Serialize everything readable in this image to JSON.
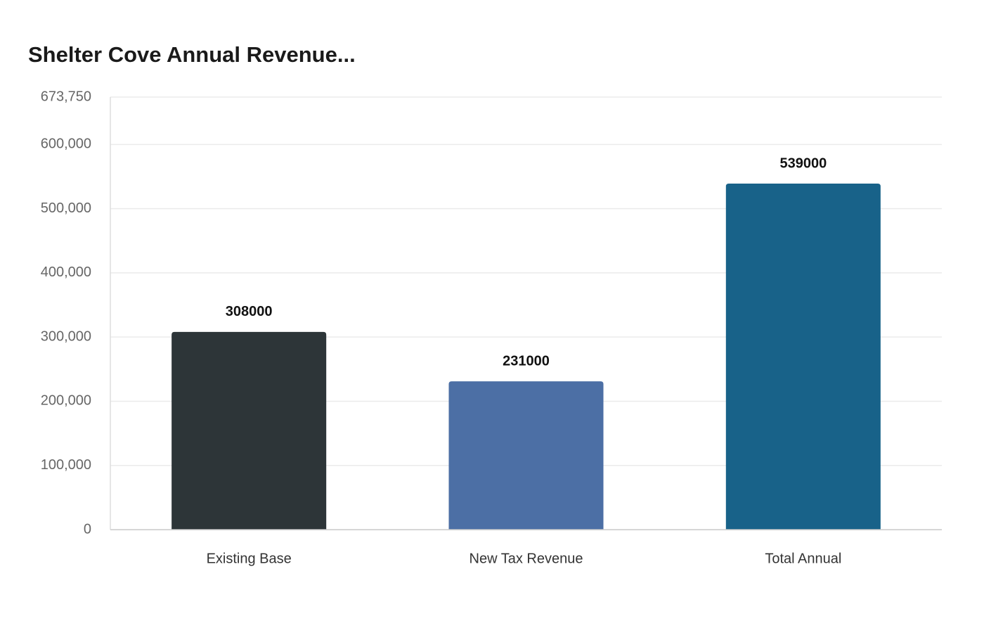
{
  "chart_data": {
    "type": "bar",
    "title": "Shelter Cove Annual Revenue...",
    "categories": [
      "Existing Base",
      "New Tax Revenue",
      "Total Annual"
    ],
    "values": [
      308000,
      231000,
      539000
    ],
    "colors": [
      "#2d3538",
      "#4c6fa5",
      "#186289"
    ],
    "ylim": [
      0,
      673750
    ],
    "yticks": [
      0,
      {
        "value": 100000,
        "label": "100,000"
      },
      {
        "value": 200000,
        "label": "200,000"
      },
      {
        "value": 300000,
        "label": "300,000"
      },
      {
        "value": 400000,
        "label": "400,000"
      },
      {
        "value": 500000,
        "label": "500,000"
      },
      {
        "value": 600000,
        "label": "600,000"
      },
      {
        "value": 673750,
        "label": "673,750"
      }
    ],
    "grid": true
  }
}
